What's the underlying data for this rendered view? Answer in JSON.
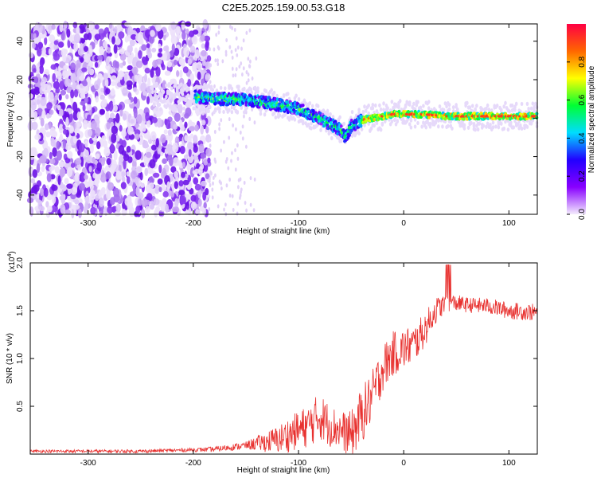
{
  "title": "C2E5.2025.159.00.53.G18",
  "chart_data": [
    {
      "type": "heatmap",
      "xlabel": "Height of straight line (km)",
      "ylabel": "Frequency (Hz)",
      "xlim": [
        -355,
        127
      ],
      "ylim": [
        -50,
        49
      ],
      "xticks": [
        -300,
        -200,
        -100,
        0,
        100
      ],
      "xtick_labels": [
        "-300",
        "-200",
        "-100",
        "0",
        "100"
      ],
      "yticks": [
        -40,
        -20,
        0,
        20,
        40
      ],
      "ytick_labels": [
        "-40",
        "-20",
        "0",
        "20",
        "40"
      ],
      "colorbar": {
        "label": "Normalized spectral amplitude",
        "range": [
          0,
          1
        ],
        "ticks": [
          0,
          0.2,
          0.4,
          0.6,
          0.8
        ],
        "tick_labels": [
          "0.0",
          "0.2",
          "0.4",
          "0.6",
          "0.8"
        ],
        "colors": [
          "#f4ecfd",
          "#8800ff",
          "#2200ff",
          "#00ddff",
          "#00ff33",
          "#ffff00",
          "#ff6600",
          "#ff0044"
        ]
      },
      "signal_trace": {
        "x": [
          -195,
          -180,
          -160,
          -140,
          -120,
          -100,
          -90,
          -80,
          -70,
          -60,
          -55,
          -50,
          -45,
          -40,
          -30,
          -20,
          -10,
          0,
          20,
          40,
          60,
          80,
          100,
          127
        ],
        "y": [
          11,
          10,
          10,
          9,
          7,
          5,
          2,
          0,
          -3,
          -6,
          -10,
          -4,
          -3,
          -1,
          0,
          1,
          2,
          2,
          2,
          1,
          1,
          1,
          1,
          1
        ]
      },
      "noise_region_x": [
        -355,
        -185
      ]
    },
    {
      "type": "line",
      "xlabel": "Height of straight line (km)",
      "ylabel": "SNR (10 * v/v)",
      "multiplier_label": "(x10",
      "multiplier_exp": "4",
      "xlim": [
        -355,
        127
      ],
      "ylim": [
        0,
        20000
      ],
      "xticks": [
        -300,
        -200,
        -100,
        0,
        100
      ],
      "xtick_labels": [
        "-300",
        "-200",
        "-100",
        "0",
        "100"
      ],
      "yticks": [
        5000,
        10000,
        15000,
        20000
      ],
      "ytick_labels": [
        "0.5",
        "1.0",
        "1.5",
        "2.0"
      ],
      "color": "#e8312f",
      "envelope": {
        "x": [
          -355,
          -250,
          -180,
          -150,
          -120,
          -100,
          -90,
          -80,
          -70,
          -60,
          -50,
          -40,
          -30,
          -20,
          -10,
          0,
          10,
          20,
          30,
          40,
          50,
          60,
          80,
          100,
          127
        ],
        "y": [
          300,
          300,
          500,
          900,
          1500,
          2500,
          3000,
          4000,
          3000,
          2500,
          2000,
          4000,
          6000,
          9000,
          10500,
          11000,
          11500,
          13000,
          15000,
          15800,
          15800,
          15600,
          15500,
          15000,
          14800
        ]
      },
      "spread": {
        "x": [
          -355,
          -200,
          -150,
          -110,
          -80,
          -60,
          -40,
          -20,
          0,
          20,
          40,
          60,
          100,
          127
        ],
        "y": [
          150,
          200,
          400,
          1800,
          2500,
          2000,
          3000,
          2500,
          2200,
          1800,
          1000,
          800,
          900,
          900
        ]
      }
    }
  ]
}
